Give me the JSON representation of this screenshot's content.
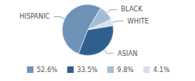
{
  "chart_data": {
    "type": "pie",
    "categories": [
      "HISPANIC",
      "BLACK",
      "WHITE",
      "ASIAN"
    ],
    "values": [
      52.6,
      9.8,
      4.1,
      33.5
    ],
    "value_labels": [
      "52.6%",
      "9.8%",
      "4.1%",
      "33.5%"
    ],
    "colors": [
      "#6f93b8",
      "#a4bcd4",
      "#d4e0ec",
      "#2f5f8f"
    ],
    "legend": "bottom"
  }
}
